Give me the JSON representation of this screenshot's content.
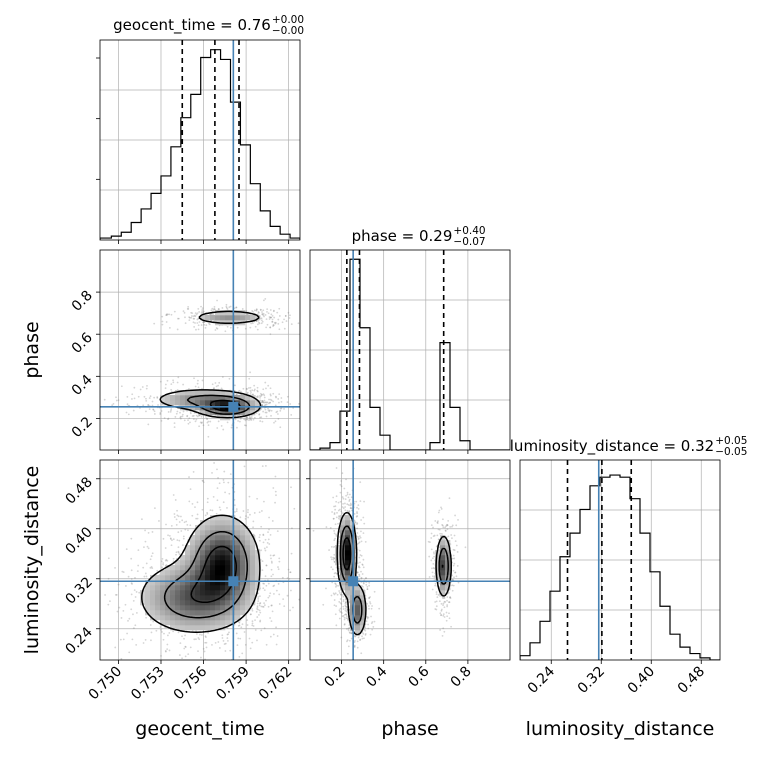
{
  "chart_data": {
    "type": "corner",
    "parameters": [
      "geocent_time",
      "phase",
      "luminosity_distance"
    ],
    "truths": {
      "geocent_time": 0.7581,
      "phase": 0.255,
      "luminosity_distance": 0.316
    },
    "titles": [
      {
        "param": "geocent_time",
        "text": "geocent_time = 0.76",
        "sup": "+0.00",
        "sub": "−0.00"
      },
      {
        "param": "phase",
        "text": "phase = 0.29",
        "sup": "+0.40",
        "sub": "−0.07"
      },
      {
        "param": "luminosity_distance",
        "text": "luminosity_distance = 0.32",
        "sup": "+0.05",
        "sub": "−0.05"
      }
    ],
    "axes": {
      "geocent_time": {
        "label": "geocent_time",
        "range": [
          0.7487,
          0.7628
        ],
        "ticks": [
          0.75,
          0.753,
          0.756,
          0.759,
          0.762
        ],
        "tick_labels": [
          "0.750",
          "0.753",
          "0.756",
          "0.759",
          "0.762"
        ]
      },
      "phase": {
        "label": "phase",
        "range": [
          0.05,
          1.0
        ],
        "ticks": [
          0.2,
          0.4,
          0.6,
          0.8
        ],
        "tick_labels": [
          "0.2",
          "0.4",
          "0.6",
          "0.8"
        ]
      },
      "luminosity_distance": {
        "label": "luminosity_distance",
        "range": [
          0.19,
          0.51
        ],
        "ticks": [
          0.24,
          0.32,
          0.4,
          0.48
        ],
        "tick_labels": [
          "0.24",
          "0.32",
          "0.40",
          "0.48"
        ]
      }
    },
    "histograms": {
      "geocent_time": {
        "edges": [
          0.7487,
          0.7495,
          0.7502,
          0.7509,
          0.7516,
          0.7523,
          0.753,
          0.7537,
          0.7544,
          0.7551,
          0.7558,
          0.7565,
          0.7572,
          0.7579,
          0.7586,
          0.7593,
          0.76,
          0.7607,
          0.7614,
          0.7621,
          0.7628
        ],
        "counts": [
          1,
          2,
          4,
          9,
          16,
          24,
          33,
          48,
          63,
          75,
          94,
          98,
          93,
          71,
          49,
          29,
          15,
          7,
          3,
          1
        ],
        "quantiles": [
          0.7545,
          0.7568,
          0.7585
        ],
        "ymax": 103
      },
      "phase": {
        "edges": [
          0.05,
          0.0975,
          0.145,
          0.1925,
          0.24,
          0.2875,
          0.335,
          0.3825,
          0.43,
          0.4775,
          0.525,
          0.5725,
          0.62,
          0.6675,
          0.715,
          0.7625,
          0.81,
          0.8575,
          0.905,
          0.9525,
          1.0
        ],
        "counts": [
          0,
          1,
          4,
          21,
          103,
          66,
          23,
          8,
          0,
          0,
          0,
          0,
          4,
          58,
          23,
          5,
          0,
          0,
          0,
          0
        ],
        "quantiles": [
          0.225,
          0.285,
          0.685
        ],
        "ymax": 108
      },
      "luminosity_distance": {
        "edges": [
          0.19,
          0.206,
          0.222,
          0.238,
          0.254,
          0.27,
          0.286,
          0.302,
          0.318,
          0.334,
          0.35,
          0.366,
          0.382,
          0.398,
          0.414,
          0.43,
          0.446,
          0.462,
          0.478,
          0.494,
          0.51
        ],
        "counts": [
          2,
          8,
          18,
          32,
          48,
          59,
          70,
          81,
          85,
          86,
          85,
          75,
          59,
          41,
          25,
          12,
          6,
          3,
          1,
          0
        ],
        "quantiles": [
          0.266,
          0.321,
          0.368
        ],
        "ymax": 93
      }
    },
    "density_2d": {
      "phase_vs_geocent_time": {
        "modes": [
          {
            "x": 0.7577,
            "y": 0.254,
            "sx": 0.0011,
            "sy": 0.025,
            "weight": 0.7
          },
          {
            "x": 0.756,
            "y": 0.29,
            "sx": 0.0019,
            "sy": 0.028,
            "weight": 0.35
          },
          {
            "x": 0.7578,
            "y": 0.68,
            "sx": 0.0014,
            "sy": 0.018,
            "weight": 0.3
          }
        ]
      },
      "luminosity_distance_vs_geocent_time": {
        "modes": [
          {
            "x": 0.7573,
            "y": 0.345,
            "sx": 0.0013,
            "sy": 0.038,
            "weight": 1.0
          },
          {
            "x": 0.7553,
            "y": 0.29,
            "sx": 0.002,
            "sy": 0.03,
            "weight": 0.7
          }
        ]
      },
      "luminosity_distance_vs_phase": {
        "modes": [
          {
            "x": 0.225,
            "y": 0.36,
            "sx": 0.022,
            "sy": 0.032,
            "weight": 1.0
          },
          {
            "x": 0.275,
            "y": 0.27,
            "sx": 0.022,
            "sy": 0.022,
            "weight": 0.6
          },
          {
            "x": 0.685,
            "y": 0.34,
            "sx": 0.018,
            "sy": 0.025,
            "weight": 0.75
          }
        ]
      }
    },
    "contour_levels": [
      0.12,
      0.38,
      0.72
    ],
    "colors": {
      "truth": "#4682b4",
      "histogram": "#000000",
      "quantile": "#000000",
      "grid": "#b0b0b0",
      "scatter": "#888888"
    },
    "grid": true
  }
}
